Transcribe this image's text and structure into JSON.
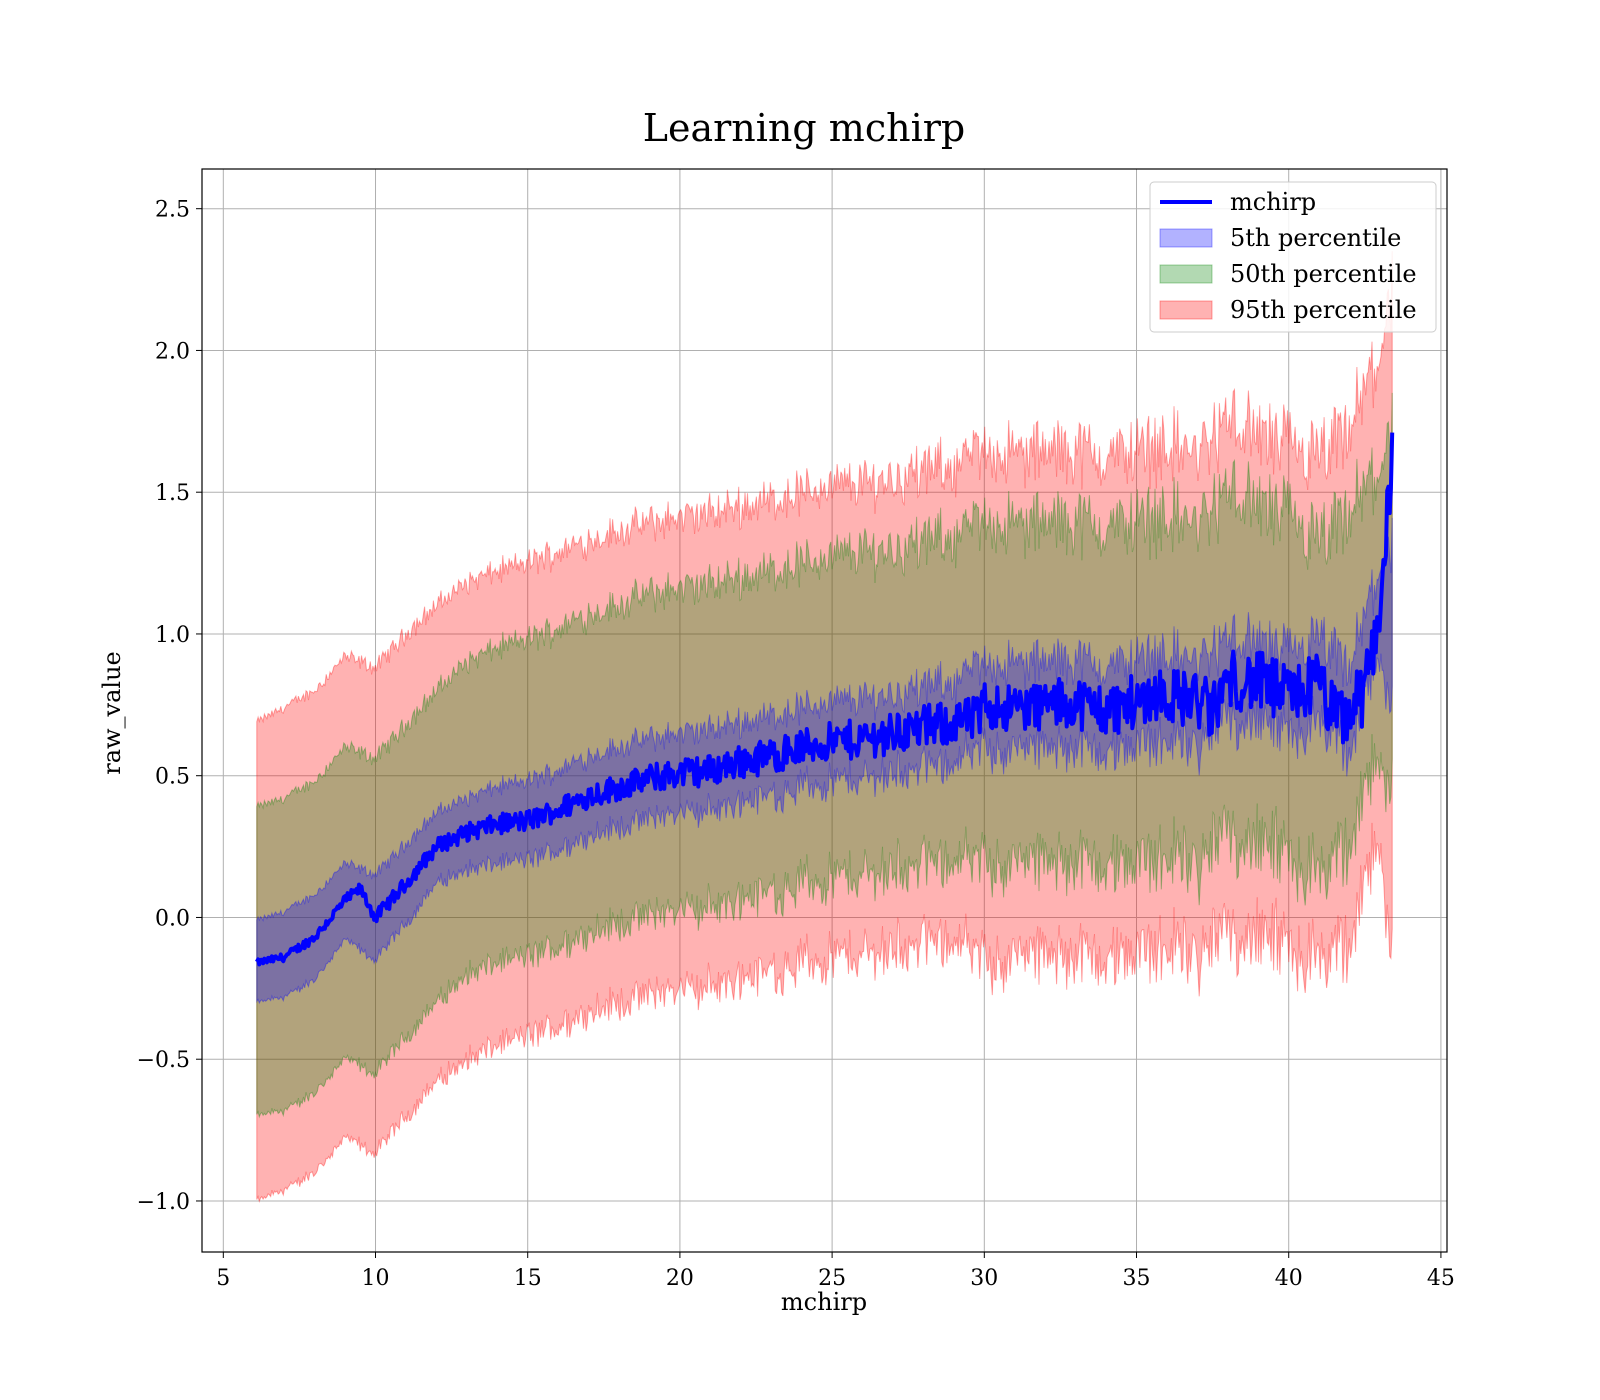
{
  "chart_data": {
    "type": "line",
    "title": "Learning mchirp",
    "xlabel": "mchirp",
    "ylabel": "raw_value",
    "xlim": [
      4.3,
      45.2
    ],
    "ylim": [
      -1.18,
      2.64
    ],
    "x_ticks": [
      5,
      10,
      15,
      20,
      25,
      30,
      35,
      40,
      45
    ],
    "y_ticks": [
      -1.0,
      -0.5,
      0.0,
      0.5,
      1.0,
      1.5,
      2.0,
      2.5
    ],
    "x_tick_labels": [
      "5",
      "10",
      "15",
      "20",
      "25",
      "30",
      "35",
      "40",
      "45"
    ],
    "y_tick_labels": [
      "−1.0",
      "−0.5",
      "0.0",
      "0.5",
      "1.0",
      "1.5",
      "2.0",
      "2.5"
    ],
    "grid": true,
    "legend_position": "top-right",
    "x_range": [
      6.1,
      43.4
    ],
    "colors": {
      "line": "#0000ff",
      "band_5": "#0000ff",
      "band_50": "#008000",
      "band_95": "#ff0000"
    },
    "series": [
      {
        "name": "mchirp",
        "kind": "line",
        "x": [
          6.1,
          7,
          8,
          9,
          9.5,
          10,
          11,
          12,
          13,
          14,
          15,
          16,
          17,
          18,
          19,
          20,
          21,
          22,
          23,
          24,
          25,
          26,
          27,
          28,
          29,
          29.8,
          30,
          31,
          32,
          33,
          34,
          35,
          35.7,
          36,
          37,
          37.5,
          38,
          39,
          40,
          41,
          41.5,
          42,
          42.5,
          43,
          43.4
        ],
        "values": [
          -0.16,
          -0.14,
          -0.07,
          0.06,
          0.1,
          0.0,
          0.12,
          0.25,
          0.3,
          0.33,
          0.34,
          0.38,
          0.43,
          0.46,
          0.49,
          0.51,
          0.52,
          0.55,
          0.57,
          0.6,
          0.62,
          0.63,
          0.65,
          0.67,
          0.69,
          0.7,
          0.75,
          0.74,
          0.75,
          0.76,
          0.73,
          0.76,
          0.8,
          0.78,
          0.77,
          0.72,
          0.84,
          0.83,
          0.78,
          0.83,
          0.7,
          0.72,
          0.8,
          1.1,
          1.62
        ]
      },
      {
        "name": "5th percentile",
        "kind": "band",
        "x": [
          6.1,
          7,
          8,
          9,
          10,
          11,
          12,
          13,
          14,
          15,
          16,
          17,
          18,
          19,
          20,
          21,
          22,
          23,
          24,
          25,
          26,
          27,
          28,
          29,
          30,
          31,
          32,
          33,
          34,
          35,
          36,
          37,
          38,
          39,
          40,
          41,
          42,
          43,
          43.4
        ],
        "upper": [
          -0.01,
          0.02,
          0.08,
          0.19,
          0.15,
          0.26,
          0.37,
          0.42,
          0.46,
          0.48,
          0.52,
          0.57,
          0.6,
          0.63,
          0.65,
          0.66,
          0.69,
          0.71,
          0.74,
          0.76,
          0.77,
          0.79,
          0.81,
          0.83,
          0.9,
          0.89,
          0.9,
          0.91,
          0.88,
          0.91,
          0.93,
          0.9,
          0.98,
          0.97,
          0.92,
          0.97,
          0.86,
          1.25,
          1.3
        ],
        "lower": [
          -0.3,
          -0.28,
          -0.22,
          -0.08,
          -0.15,
          -0.02,
          0.12,
          0.17,
          0.19,
          0.2,
          0.24,
          0.29,
          0.32,
          0.35,
          0.37,
          0.38,
          0.41,
          0.43,
          0.46,
          0.48,
          0.49,
          0.51,
          0.53,
          0.55,
          0.6,
          0.59,
          0.6,
          0.61,
          0.58,
          0.61,
          0.63,
          0.6,
          0.7,
          0.69,
          0.64,
          0.69,
          0.58,
          0.95,
          0.7
        ]
      },
      {
        "name": "50th percentile",
        "kind": "band",
        "x": [
          6.1,
          7,
          8,
          9,
          10,
          11,
          12,
          13,
          14,
          15,
          16,
          17,
          18,
          19,
          20,
          21,
          22,
          23,
          24,
          25,
          26,
          27,
          28,
          29,
          30,
          31,
          32,
          33,
          34,
          35,
          36,
          37,
          38,
          39,
          40,
          41,
          42,
          43,
          43.4
        ],
        "upper": [
          0.39,
          0.42,
          0.48,
          0.6,
          0.56,
          0.68,
          0.8,
          0.9,
          0.95,
          0.98,
          1.02,
          1.07,
          1.1,
          1.14,
          1.16,
          1.17,
          1.2,
          1.22,
          1.25,
          1.27,
          1.29,
          1.3,
          1.32,
          1.34,
          1.4,
          1.38,
          1.39,
          1.4,
          1.37,
          1.4,
          1.42,
          1.38,
          1.5,
          1.45,
          1.4,
          1.3,
          1.4,
          1.6,
          1.7
        ],
        "lower": [
          -0.7,
          -0.68,
          -0.62,
          -0.5,
          -0.55,
          -0.42,
          -0.3,
          -0.2,
          -0.16,
          -0.14,
          -0.1,
          -0.05,
          -0.02,
          0.01,
          0.03,
          0.04,
          0.07,
          0.09,
          0.12,
          0.14,
          0.15,
          0.17,
          0.19,
          0.21,
          0.2,
          0.19,
          0.2,
          0.21,
          0.18,
          0.2,
          0.22,
          0.18,
          0.3,
          0.25,
          0.2,
          0.15,
          0.25,
          0.6,
          0.4
        ]
      },
      {
        "name": "95th percentile",
        "kind": "band",
        "x": [
          6.1,
          7,
          8,
          9,
          10,
          11,
          12,
          13,
          14,
          15,
          16,
          17,
          18,
          19,
          20,
          21,
          22,
          23,
          24,
          25,
          26,
          27,
          28,
          29,
          30,
          31,
          32,
          33,
          34,
          35,
          36,
          37,
          38,
          39,
          40,
          41,
          42,
          43,
          43.4
        ],
        "upper": [
          0.69,
          0.74,
          0.8,
          0.92,
          0.88,
          1.0,
          1.1,
          1.18,
          1.22,
          1.25,
          1.29,
          1.33,
          1.36,
          1.39,
          1.41,
          1.42,
          1.45,
          1.47,
          1.5,
          1.52,
          1.53,
          1.55,
          1.57,
          1.59,
          1.65,
          1.63,
          1.64,
          1.65,
          1.62,
          1.65,
          1.67,
          1.63,
          1.75,
          1.7,
          1.65,
          1.6,
          1.7,
          2.0,
          2.2
        ],
        "lower": [
          -1.0,
          -0.96,
          -0.9,
          -0.78,
          -0.83,
          -0.7,
          -0.58,
          -0.5,
          -0.45,
          -0.42,
          -0.38,
          -0.33,
          -0.3,
          -0.27,
          -0.25,
          -0.24,
          -0.21,
          -0.19,
          -0.16,
          -0.14,
          -0.13,
          -0.11,
          -0.09,
          -0.07,
          -0.15,
          -0.14,
          -0.13,
          -0.12,
          -0.15,
          -0.12,
          -0.1,
          -0.14,
          -0.05,
          -0.08,
          -0.12,
          -0.15,
          -0.1,
          0.3,
          -0.2
        ]
      }
    ]
  }
}
